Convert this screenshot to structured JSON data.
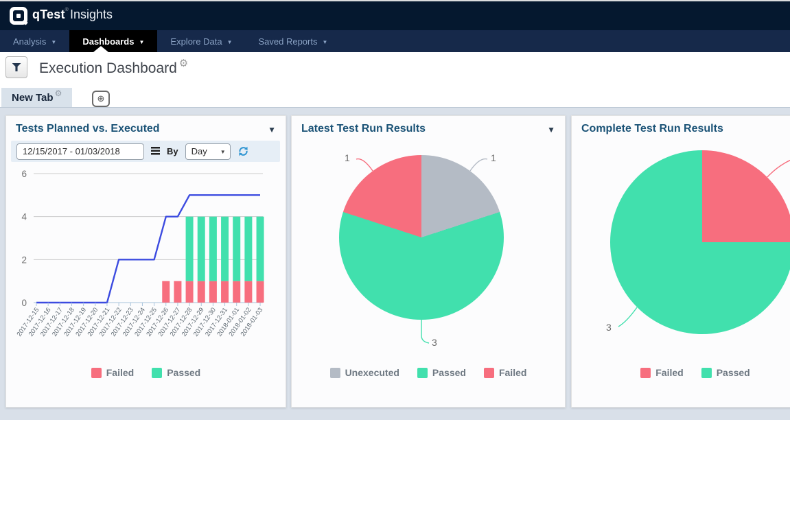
{
  "brand": {
    "name": "qTest",
    "mark": "®",
    "product": "Insights"
  },
  "nav": {
    "items": [
      {
        "label": "Analysis",
        "active": false
      },
      {
        "label": "Dashboards",
        "active": true
      },
      {
        "label": "Explore Data",
        "active": false
      },
      {
        "label": "Saved Reports",
        "active": false
      }
    ]
  },
  "header": {
    "title": "Execution Dashboard"
  },
  "tabs": {
    "active_tab": "New Tab"
  },
  "panel1_toolbar": {
    "date_range": "12/15/2017 - 01/03/2018",
    "by_label": "By",
    "interval": "Day"
  },
  "colors": {
    "navbar_top_bg": "#05182f",
    "navbar_sub_bg": "#16294a",
    "nav_item_text": "#8aa2c4",
    "active_item_bg": "#000000",
    "title_blue": "#1a5276",
    "content_bg": "#d9e0e9",
    "passed": "#41e0ad",
    "failed": "#f76e7e",
    "unexecuted": "#b4bbc5",
    "planned_line": "#3c4be0",
    "refresh_blue": "#3095d2"
  },
  "chart_data": [
    {
      "type": "line+bar",
      "title": "Tests Planned vs. Executed",
      "x": [
        "2017-12-15",
        "2017-12-16",
        "2017-12-17",
        "2017-12-18",
        "2017-12-19",
        "2017-12-20",
        "2017-12-21",
        "2017-12-22",
        "2017-12-23",
        "2017-12-24",
        "2017-12-25",
        "2017-12-26",
        "2017-12-27",
        "2017-12-28",
        "2017-12-29",
        "2017-12-30",
        "2017-12-31",
        "2018-01-01",
        "2018-01-02",
        "2018-01-03"
      ],
      "series": [
        {
          "name": "Planned",
          "type": "line",
          "color_key": "planned_line",
          "values": [
            0,
            0,
            0,
            0,
            0,
            0,
            0,
            2,
            2,
            2,
            2,
            4,
            4,
            5,
            5,
            5,
            5,
            5,
            5,
            5
          ]
        },
        {
          "name": "Failed",
          "type": "bar",
          "color_key": "failed",
          "values": [
            0,
            0,
            0,
            0,
            0,
            0,
            0,
            0,
            0,
            0,
            0,
            1,
            1,
            1,
            1,
            1,
            1,
            1,
            1,
            1
          ]
        },
        {
          "name": "Passed",
          "type": "bar",
          "color_key": "passed",
          "values": [
            0,
            0,
            0,
            0,
            0,
            0,
            0,
            0,
            0,
            0,
            0,
            0,
            0,
            3,
            3,
            3,
            3,
            3,
            3,
            3
          ]
        }
      ],
      "ylim": [
        0,
        6
      ],
      "yticks": [
        0,
        2,
        4,
        6
      ],
      "grid": true,
      "legend": [
        "Failed",
        "Passed"
      ],
      "legend_position": "bottom"
    },
    {
      "type": "pie",
      "title": "Latest Test Run Results",
      "slices": [
        {
          "label": "Unexecuted",
          "value": 1
        },
        {
          "label": "Passed",
          "value": 3
        },
        {
          "label": "Failed",
          "value": 1
        }
      ],
      "legend": [
        "Unexecuted",
        "Passed",
        "Failed"
      ],
      "legend_position": "bottom"
    },
    {
      "type": "pie",
      "title": "Complete Test Run Results",
      "slices": [
        {
          "label": "Failed",
          "value": 1
        },
        {
          "label": "Passed",
          "value": 3
        }
      ],
      "legend": [
        "Failed",
        "Passed"
      ],
      "legend_position": "bottom"
    }
  ]
}
